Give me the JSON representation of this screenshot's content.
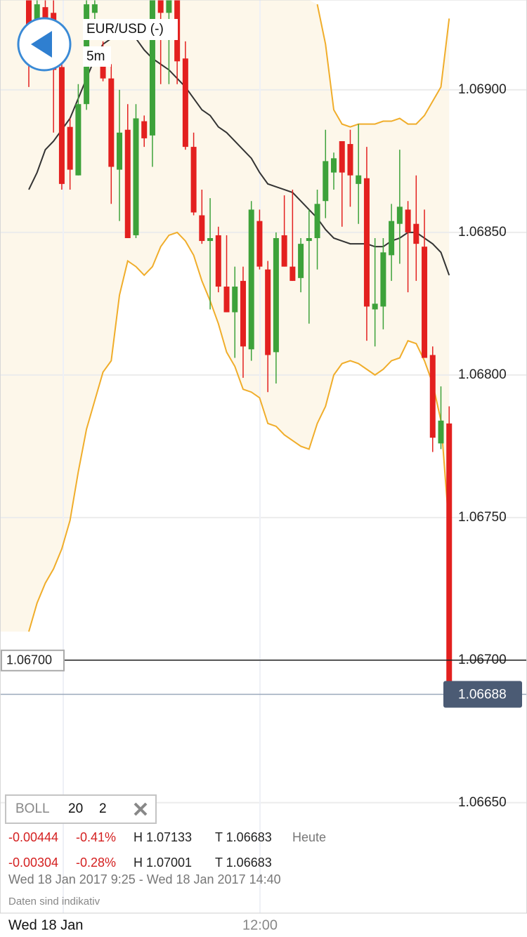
{
  "chart_data": {
    "type": "candlestick",
    "symbol": "EUR/USD (-)",
    "interval": "5m",
    "categories": [
      null,
      null,
      null,
      null,
      null,
      null,
      null,
      null,
      null,
      null,
      null,
      null,
      null,
      null,
      null,
      null,
      null,
      null,
      null,
      null,
      null,
      null,
      null,
      null,
      null,
      null,
      null,
      null,
      null,
      null,
      null,
      null,
      null,
      null,
      null,
      null,
      null,
      null,
      null,
      null,
      null,
      null,
      null,
      null,
      null,
      null,
      null,
      null,
      null,
      null,
      null,
      null
    ],
    "open": [
      1.06932,
      1.06922,
      1.06929,
      1.06927,
      1.06908,
      1.06887,
      1.0687,
      1.06895,
      1.06927,
      1.06913,
      1.06904,
      1.06872,
      1.06886,
      1.06849,
      1.06889,
      1.06884,
      1.06932,
      1.06927,
      1.06932,
      1.06911,
      1.0688,
      1.06856,
      1.06847,
      1.06849,
      1.06831,
      1.06822,
      1.06833,
      1.06809,
      1.06854,
      1.06837,
      1.06808,
      1.06849,
      1.06838,
      1.06834,
      1.06847,
      1.06848,
      1.06861,
      1.06871,
      1.06882,
      1.06881,
      1.06867,
      1.06869,
      1.06823,
      1.06824,
      1.06842,
      1.06853,
      1.06858,
      1.06853,
      1.06845,
      1.06807,
      1.06776,
      1.06783
    ],
    "high": [
      1.06932,
      1.06932,
      1.06932,
      1.06932,
      1.06909,
      1.0689,
      1.06902,
      1.06932,
      1.06932,
      1.06917,
      1.06909,
      1.069,
      1.06895,
      1.06895,
      1.06891,
      1.06932,
      1.06932,
      1.06932,
      1.06932,
      1.06917,
      1.06885,
      1.06865,
      1.06862,
      1.06852,
      1.06849,
      1.06838,
      1.06838,
      1.06861,
      1.06858,
      1.0684,
      1.0685,
      1.06863,
      1.06865,
      1.06848,
      1.06858,
      1.06865,
      1.06886,
      1.06878,
      1.06882,
      1.06886,
      1.06888,
      1.0688,
      1.06848,
      1.06848,
      1.0686,
      1.06879,
      1.06861,
      1.0687,
      1.06858,
      1.0681,
      1.06796,
      1.06789
    ],
    "low": [
      1.06901,
      1.06914,
      1.06909,
      1.06885,
      1.06865,
      1.06865,
      1.0687,
      1.06893,
      1.06922,
      1.06903,
      1.0686,
      1.06854,
      1.06848,
      1.06848,
      1.0688,
      1.06873,
      1.06902,
      1.06902,
      1.06902,
      1.06879,
      1.06856,
      1.06846,
      1.06823,
      1.06829,
      1.06822,
      1.06806,
      1.06799,
      1.06805,
      1.06837,
      1.06794,
      1.06797,
      1.06838,
      1.06833,
      1.06829,
      1.06818,
      1.06837,
      1.06855,
      1.06865,
      1.06852,
      1.06859,
      1.06853,
      1.06812,
      1.0681,
      1.06816,
      1.06833,
      1.06839,
      1.06829,
      1.06833,
      1.06806,
      1.06773,
      1.06774,
      1.06688
    ],
    "close": [
      1.06917,
      1.0693,
      1.06919,
      1.06907,
      1.06867,
      1.06872,
      1.06895,
      1.0693,
      1.0693,
      1.06904,
      1.06873,
      1.06885,
      1.06848,
      1.0689,
      1.06883,
      1.06932,
      1.06927,
      1.06932,
      1.0691,
      1.0688,
      1.06857,
      1.06847,
      1.06848,
      1.06831,
      1.06822,
      1.06831,
      1.0681,
      1.06858,
      1.06838,
      1.06807,
      1.06848,
      1.06838,
      1.06833,
      1.06846,
      1.06848,
      1.0686,
      1.06875,
      1.06876,
      1.06871,
      1.0687,
      1.0687,
      1.06824,
      1.06825,
      1.06843,
      1.06854,
      1.06859,
      1.0685,
      1.06846,
      1.06806,
      1.06778,
      1.06784,
      1.06688
    ],
    "up_color": "#3da23a",
    "down_color": "#e3201f",
    "bands": [
      {
        "color": "#333333",
        "values": [
          1.06865,
          1.06871,
          1.06879,
          1.06882,
          1.06886,
          1.0689,
          1.06897,
          1.06904,
          1.06911,
          1.06916,
          1.06918,
          1.06918,
          1.06919,
          1.06918,
          1.06914,
          1.06911,
          1.06909,
          1.06907,
          1.06904,
          1.06901,
          1.06897,
          1.06893,
          1.06891,
          1.06887,
          1.06885,
          1.06882,
          1.06879,
          1.06876,
          1.06871,
          1.06867,
          1.06866,
          1.06865,
          1.06864,
          1.06861,
          1.06858,
          1.06855,
          1.06851,
          1.06848,
          1.06847,
          1.06846,
          1.06846,
          1.06846,
          1.06845,
          1.06845,
          1.06847,
          1.06848,
          1.0685,
          1.0685,
          1.06848,
          1.06846,
          1.06843,
          1.06835
        ]
      },
      {
        "color": "#f0ad2a",
        "values": [
          null,
          null,
          null,
          null,
          null,
          null,
          null,
          null,
          null,
          null,
          null,
          null,
          null,
          null,
          null,
          null,
          null,
          null,
          null,
          null,
          null,
          null,
          null,
          null,
          null,
          null,
          null,
          null,
          null,
          null,
          null,
          null,
          null,
          null,
          null,
          1.0693,
          1.06916,
          1.06893,
          1.06888,
          1.06887,
          1.06888,
          1.06888,
          1.06888,
          1.06889,
          1.06889,
          1.0689,
          1.06888,
          1.06888,
          1.06891,
          1.06896,
          1.06901,
          1.06925
        ]
      },
      {
        "color": "#f0ad2a",
        "values": [
          1.0671,
          1.0672,
          1.06727,
          1.06732,
          1.06739,
          1.06749,
          1.06766,
          1.06781,
          1.06791,
          1.06801,
          1.06805,
          1.06828,
          1.0684,
          1.06838,
          1.06835,
          1.06838,
          1.06845,
          1.06849,
          1.0685,
          1.06847,
          1.06842,
          1.06833,
          1.06826,
          1.06818,
          1.06808,
          1.06803,
          1.06795,
          1.06794,
          1.06792,
          1.06783,
          1.06782,
          1.06779,
          1.06777,
          1.06775,
          1.06774,
          1.06783,
          1.06789,
          1.068,
          1.06804,
          1.06805,
          1.06804,
          1.06802,
          1.068,
          1.06802,
          1.06805,
          1.06806,
          1.06812,
          1.06811,
          1.06805,
          1.06797,
          1.06784,
          1.06746
        ]
      }
    ],
    "band_fill": "#fdf7ea",
    "ylim": [
      1.06613,
      1.06932
    ],
    "yticks": [
      {
        "value": 1.069,
        "label": "1.06900"
      },
      {
        "value": 1.0685,
        "label": "1.06850"
      },
      {
        "value": 1.068,
        "label": "1.06800"
      },
      {
        "value": 1.0675,
        "label": "1.06750"
      },
      {
        "value": 1.067,
        "label": "1.06700"
      },
      {
        "value": 1.0665,
        "label": "1.06650"
      }
    ],
    "grid": true,
    "level_line": {
      "value": 1.067,
      "label": "1.06700"
    },
    "last_price": {
      "value": 1.06688,
      "label": "1.06688"
    },
    "x_labels": [
      "Wed 18 Jan",
      "12:00"
    ]
  },
  "indicator": {
    "name": "BOLL",
    "period": "20",
    "deviation": "2"
  },
  "stats": [
    {
      "change": "-0.00444",
      "percent": "-0.41%",
      "high": "H 1.07133",
      "low": "T 1.06683",
      "note": "Heute"
    },
    {
      "change": "-0.00304",
      "percent": "-0.28%",
      "high": "H 1.07001",
      "low": "T 1.06683"
    }
  ],
  "range": "Wed 18 Jan 2017 9:25 - Wed 18 Jan 2017 14:40",
  "disclaimer": "Daten sind indikativ"
}
